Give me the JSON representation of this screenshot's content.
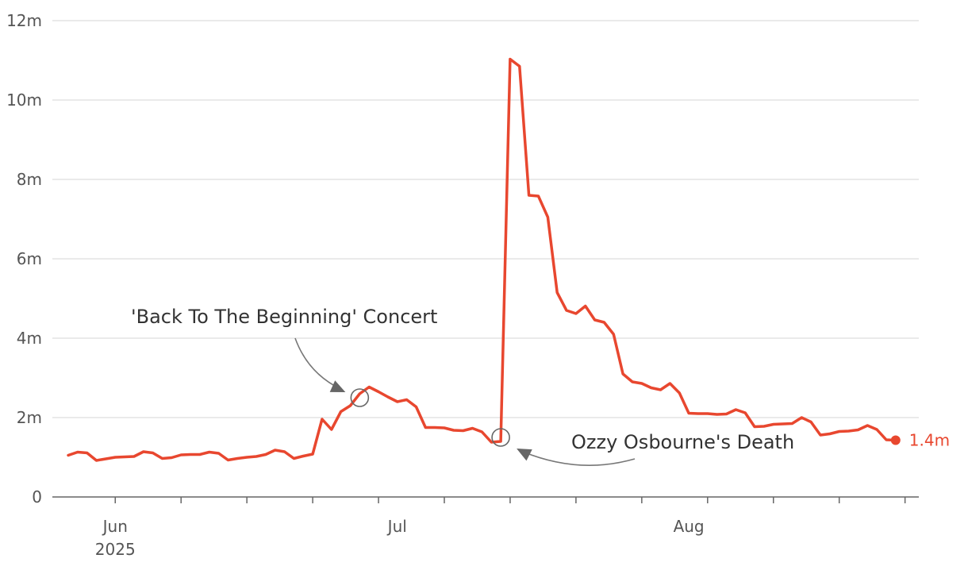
{
  "chart_data": {
    "type": "line",
    "title": "",
    "xlabel": "",
    "ylabel": "",
    "ylim": [
      0,
      12000000
    ],
    "y_ticks": [
      {
        "value": 0,
        "label": "0"
      },
      {
        "value": 2000000,
        "label": "2m"
      },
      {
        "value": 4000000,
        "label": "4m"
      },
      {
        "value": 6000000,
        "label": "6m"
      },
      {
        "value": 8000000,
        "label": "8m"
      },
      {
        "value": 10000000,
        "label": "10m"
      },
      {
        "value": 12000000,
        "label": "12m"
      }
    ],
    "x_range": [
      "2025-05-27",
      "2025-09-02"
    ],
    "x_tick_marks": [
      "2025-06-01",
      "2025-06-08",
      "2025-06-15",
      "2025-06-22",
      "2025-06-29",
      "2025-07-06",
      "2025-07-13",
      "2025-07-20",
      "2025-07-27",
      "2025-08-03",
      "2025-08-10",
      "2025-08-17",
      "2025-08-24",
      "2025-08-31"
    ],
    "x_tick_labels": [
      {
        "date": "2025-06-01",
        "label": "Jun",
        "sublabel": "2025"
      },
      {
        "date": "2025-07-01",
        "label": "Jul",
        "sublabel": ""
      },
      {
        "date": "2025-08-01",
        "label": "Aug",
        "sublabel": ""
      }
    ],
    "grid": true,
    "series": [
      {
        "color": "#e8472f",
        "points": [
          [
            "2025-05-27",
            1050000
          ],
          [
            "2025-05-28",
            1130000
          ],
          [
            "2025-05-29",
            1110000
          ],
          [
            "2025-05-30",
            920000
          ],
          [
            "2025-05-31",
            960000
          ],
          [
            "2025-06-01",
            1000000
          ],
          [
            "2025-06-02",
            1010000
          ],
          [
            "2025-06-03",
            1020000
          ],
          [
            "2025-06-04",
            1140000
          ],
          [
            "2025-06-05",
            1110000
          ],
          [
            "2025-06-06",
            970000
          ],
          [
            "2025-06-07",
            990000
          ],
          [
            "2025-06-08",
            1060000
          ],
          [
            "2025-06-09",
            1070000
          ],
          [
            "2025-06-10",
            1070000
          ],
          [
            "2025-06-11",
            1130000
          ],
          [
            "2025-06-12",
            1100000
          ],
          [
            "2025-06-13",
            930000
          ],
          [
            "2025-06-14",
            970000
          ],
          [
            "2025-06-15",
            1000000
          ],
          [
            "2025-06-16",
            1020000
          ],
          [
            "2025-06-17",
            1070000
          ],
          [
            "2025-06-18",
            1180000
          ],
          [
            "2025-06-19",
            1140000
          ],
          [
            "2025-06-20",
            970000
          ],
          [
            "2025-06-21",
            1030000
          ],
          [
            "2025-06-22",
            1080000
          ],
          [
            "2025-06-23",
            1960000
          ],
          [
            "2025-06-24",
            1700000
          ],
          [
            "2025-06-25",
            2150000
          ],
          [
            "2025-06-26",
            2300000
          ],
          [
            "2025-06-27",
            2600000
          ],
          [
            "2025-06-28",
            2770000
          ],
          [
            "2025-06-29",
            2650000
          ],
          [
            "2025-06-30",
            2520000
          ],
          [
            "2025-07-01",
            2400000
          ],
          [
            "2025-07-02",
            2450000
          ],
          [
            "2025-07-03",
            2270000
          ],
          [
            "2025-07-04",
            1750000
          ],
          [
            "2025-07-05",
            1750000
          ],
          [
            "2025-07-06",
            1740000
          ],
          [
            "2025-07-07",
            1680000
          ],
          [
            "2025-07-08",
            1670000
          ],
          [
            "2025-07-09",
            1730000
          ],
          [
            "2025-07-10",
            1640000
          ],
          [
            "2025-07-11",
            1380000
          ],
          [
            "2025-07-12",
            1400000
          ],
          [
            "2025-07-13",
            11030000
          ],
          [
            "2025-07-14",
            10850000
          ],
          [
            "2025-07-15",
            7600000
          ],
          [
            "2025-07-16",
            7580000
          ],
          [
            "2025-07-17",
            7050000
          ],
          [
            "2025-07-18",
            5150000
          ],
          [
            "2025-07-19",
            4700000
          ],
          [
            "2025-07-20",
            4620000
          ],
          [
            "2025-07-21",
            4810000
          ],
          [
            "2025-07-22",
            4460000
          ],
          [
            "2025-07-23",
            4400000
          ],
          [
            "2025-07-24",
            4100000
          ],
          [
            "2025-07-25",
            3100000
          ],
          [
            "2025-07-26",
            2900000
          ],
          [
            "2025-07-27",
            2860000
          ],
          [
            "2025-07-28",
            2750000
          ],
          [
            "2025-07-29",
            2700000
          ],
          [
            "2025-07-30",
            2860000
          ],
          [
            "2025-07-31",
            2620000
          ],
          [
            "2025-08-01",
            2110000
          ],
          [
            "2025-08-02",
            2100000
          ],
          [
            "2025-08-03",
            2100000
          ],
          [
            "2025-08-04",
            2080000
          ],
          [
            "2025-08-05",
            2090000
          ],
          [
            "2025-08-06",
            2200000
          ],
          [
            "2025-08-07",
            2120000
          ],
          [
            "2025-08-08",
            1770000
          ],
          [
            "2025-08-09",
            1780000
          ],
          [
            "2025-08-10",
            1830000
          ],
          [
            "2025-08-11",
            1840000
          ],
          [
            "2025-08-12",
            1850000
          ],
          [
            "2025-08-13",
            2000000
          ],
          [
            "2025-08-14",
            1890000
          ],
          [
            "2025-08-15",
            1560000
          ],
          [
            "2025-08-16",
            1590000
          ],
          [
            "2025-08-17",
            1650000
          ],
          [
            "2025-08-18",
            1660000
          ],
          [
            "2025-08-19",
            1690000
          ],
          [
            "2025-08-20",
            1800000
          ],
          [
            "2025-08-21",
            1700000
          ],
          [
            "2025-08-22",
            1440000
          ],
          [
            "2025-08-23",
            1430000
          ]
        ],
        "end_label": "1.4m"
      }
    ],
    "annotations": [
      {
        "text": "'Back To The Beginning' Concert",
        "date": "2025-06-27",
        "value": 2500000
      },
      {
        "text": "Ozzy Osbourne's Death",
        "date": "2025-07-12",
        "value": 1500000
      }
    ]
  }
}
